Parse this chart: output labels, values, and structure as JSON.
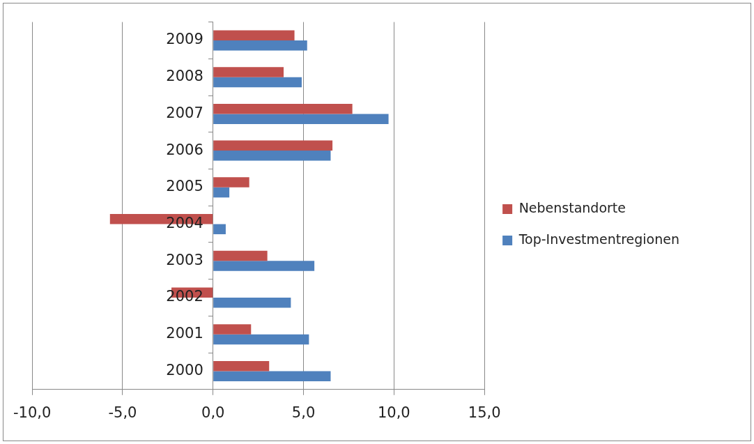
{
  "chart_data": {
    "type": "bar",
    "orientation": "horizontal",
    "categories": [
      "2009",
      "2008",
      "2007",
      "2006",
      "2005",
      "2004",
      "2003",
      "2002",
      "2001",
      "2000"
    ],
    "series": [
      {
        "name": "Nebenstandorte",
        "color": "#c0504d",
        "values": [
          4.5,
          3.9,
          7.7,
          6.6,
          2.0,
          -5.7,
          3.0,
          -2.3,
          2.1,
          3.1
        ]
      },
      {
        "name": "Top-Investmentregionen",
        "color": "#4f81bd",
        "values": [
          5.2,
          4.9,
          9.7,
          6.5,
          0.9,
          0.7,
          5.6,
          4.3,
          5.3,
          6.5
        ]
      }
    ],
    "xlim": [
      -10,
      15
    ],
    "xticks": [
      {
        "value": -10,
        "label": "-10,0"
      },
      {
        "value": -5,
        "label": "-5,0"
      },
      {
        "value": 0,
        "label": "0,0"
      },
      {
        "value": 5,
        "label": "5,0"
      },
      {
        "value": 10,
        "label": "10,0"
      },
      {
        "value": 15,
        "label": "15,0"
      }
    ],
    "grid": "x",
    "legend": "right"
  }
}
